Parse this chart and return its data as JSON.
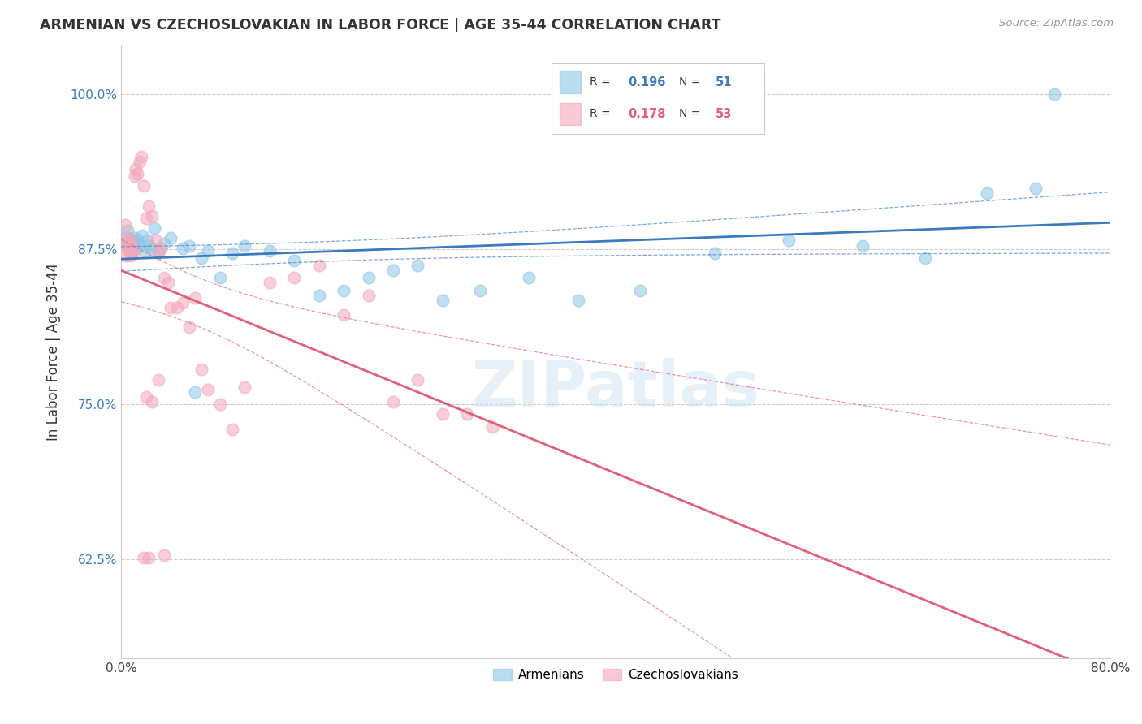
{
  "title": "ARMENIAN VS CZECHOSLOVAKIAN IN LABOR FORCE | AGE 35-44 CORRELATION CHART",
  "source": "Source: ZipAtlas.com",
  "ylabel": "In Labor Force | Age 35-44",
  "xlim": [
    0.0,
    0.8
  ],
  "ylim": [
    0.545,
    1.04
  ],
  "xticks": [
    0.0,
    0.1,
    0.2,
    0.3,
    0.4,
    0.5,
    0.6,
    0.7,
    0.8
  ],
  "xticklabels": [
    "0.0%",
    "",
    "",
    "",
    "",
    "",
    "",
    "",
    "80.0%"
  ],
  "yticks": [
    0.625,
    0.75,
    0.875,
    1.0
  ],
  "yticklabels": [
    "62.5%",
    "75.0%",
    "87.5%",
    "100.0%"
  ],
  "legend_armenians": "Armenians",
  "legend_czechoslovakians": "Czechoslovakians",
  "r_armenians": 0.196,
  "n_armenians": 51,
  "r_czechoslovakians": 0.178,
  "n_czechoslovakians": 53,
  "color_armenians": "#8dc6e8",
  "color_czechoslovakians": "#f4a7b9",
  "trend_color_armenians": "#3a7bbf",
  "trend_color_czechoslovakians": "#e0607a",
  "watermark": "ZIPatlas",
  "arm_x": [
    0.003,
    0.004,
    0.005,
    0.006,
    0.006,
    0.007,
    0.007,
    0.008,
    0.008,
    0.009,
    0.01,
    0.011,
    0.012,
    0.013,
    0.015,
    0.017,
    0.019,
    0.021,
    0.023,
    0.025,
    0.027,
    0.03,
    0.035,
    0.04,
    0.05,
    0.055,
    0.06,
    0.065,
    0.07,
    0.08,
    0.09,
    0.1,
    0.12,
    0.14,
    0.16,
    0.18,
    0.2,
    0.22,
    0.24,
    0.26,
    0.29,
    0.33,
    0.37,
    0.42,
    0.48,
    0.54,
    0.6,
    0.65,
    0.7,
    0.74,
    0.755
  ],
  "arm_y": [
    0.88,
    0.885,
    0.89,
    0.875,
    0.88,
    0.88,
    0.878,
    0.876,
    0.882,
    0.878,
    0.882,
    0.884,
    0.876,
    0.882,
    0.878,
    0.886,
    0.874,
    0.882,
    0.878,
    0.876,
    0.892,
    0.874,
    0.88,
    0.884,
    0.876,
    0.878,
    0.76,
    0.868,
    0.874,
    0.852,
    0.872,
    0.878,
    0.874,
    0.866,
    0.838,
    0.842,
    0.852,
    0.858,
    0.862,
    0.834,
    0.842,
    0.852,
    0.834,
    0.842,
    0.872,
    0.882,
    0.878,
    0.868,
    0.92,
    0.924,
    1.0
  ],
  "cze_x": [
    0.002,
    0.003,
    0.004,
    0.005,
    0.005,
    0.006,
    0.006,
    0.007,
    0.007,
    0.008,
    0.008,
    0.009,
    0.01,
    0.011,
    0.012,
    0.013,
    0.015,
    0.016,
    0.018,
    0.02,
    0.022,
    0.025,
    0.028,
    0.03,
    0.032,
    0.035,
    0.038,
    0.04,
    0.045,
    0.05,
    0.055,
    0.06,
    0.065,
    0.07,
    0.08,
    0.09,
    0.1,
    0.12,
    0.14,
    0.16,
    0.18,
    0.2,
    0.22,
    0.24,
    0.26,
    0.28,
    0.3,
    0.025,
    0.02,
    0.03,
    0.035,
    0.022,
    0.018
  ],
  "cze_y": [
    0.88,
    0.895,
    0.87,
    0.882,
    0.876,
    0.878,
    0.884,
    0.872,
    0.88,
    0.878,
    0.87,
    0.874,
    0.872,
    0.934,
    0.94,
    0.936,
    0.946,
    0.95,
    0.926,
    0.9,
    0.91,
    0.902,
    0.882,
    0.872,
    0.876,
    0.852,
    0.848,
    0.828,
    0.828,
    0.832,
    0.812,
    0.836,
    0.778,
    0.762,
    0.75,
    0.73,
    0.764,
    0.848,
    0.852,
    0.862,
    0.822,
    0.838,
    0.752,
    0.77,
    0.742,
    0.742,
    0.732,
    0.752,
    0.756,
    0.77,
    0.628,
    0.626,
    0.626
  ]
}
